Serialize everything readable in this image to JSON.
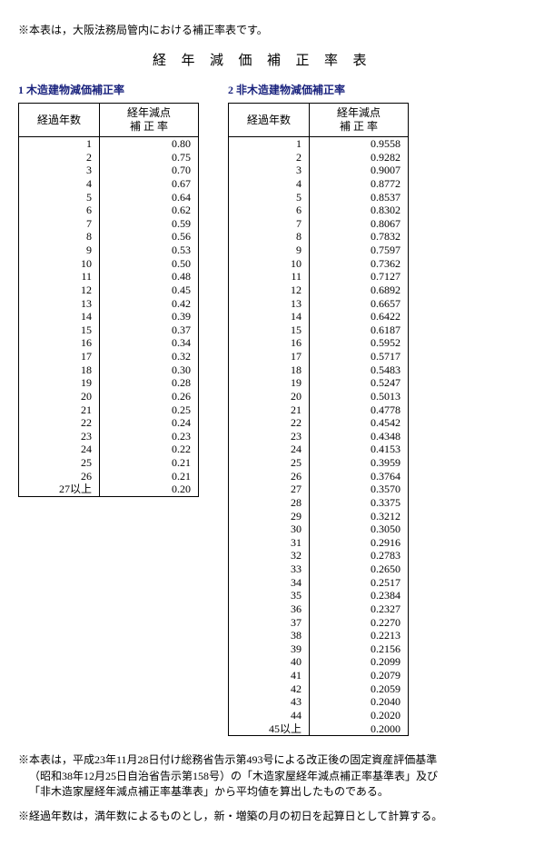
{
  "top_note": "※本表は，大阪法務局管内における補正率表です。",
  "main_title": "経年減価補正率表",
  "table1": {
    "caption": "1 木造建物減価補正率",
    "header_year": "経過年数",
    "header_rate_line1": "経年減点",
    "header_rate_line2": "補 正 率",
    "rows": [
      {
        "y": "1",
        "r": "0.80"
      },
      {
        "y": "2",
        "r": "0.75"
      },
      {
        "y": "3",
        "r": "0.70"
      },
      {
        "y": "4",
        "r": "0.67"
      },
      {
        "y": "5",
        "r": "0.64"
      },
      {
        "y": "6",
        "r": "0.62"
      },
      {
        "y": "7",
        "r": "0.59"
      },
      {
        "y": "8",
        "r": "0.56"
      },
      {
        "y": "9",
        "r": "0.53"
      },
      {
        "y": "10",
        "r": "0.50"
      },
      {
        "y": "11",
        "r": "0.48"
      },
      {
        "y": "12",
        "r": "0.45"
      },
      {
        "y": "13",
        "r": "0.42"
      },
      {
        "y": "14",
        "r": "0.39"
      },
      {
        "y": "15",
        "r": "0.37"
      },
      {
        "y": "16",
        "r": "0.34"
      },
      {
        "y": "17",
        "r": "0.32"
      },
      {
        "y": "18",
        "r": "0.30"
      },
      {
        "y": "19",
        "r": "0.28"
      },
      {
        "y": "20",
        "r": "0.26"
      },
      {
        "y": "21",
        "r": "0.25"
      },
      {
        "y": "22",
        "r": "0.24"
      },
      {
        "y": "23",
        "r": "0.23"
      },
      {
        "y": "24",
        "r": "0.22"
      },
      {
        "y": "25",
        "r": "0.21"
      },
      {
        "y": "26",
        "r": "0.21"
      },
      {
        "y": "27以上",
        "r": "0.20"
      }
    ]
  },
  "table2": {
    "caption": "2 非木造建物減価補正率",
    "header_year": "経過年数",
    "header_rate_line1": "経年減点",
    "header_rate_line2": "補 正 率",
    "rows": [
      {
        "y": "1",
        "r": "0.9558"
      },
      {
        "y": "2",
        "r": "0.9282"
      },
      {
        "y": "3",
        "r": "0.9007"
      },
      {
        "y": "4",
        "r": "0.8772"
      },
      {
        "y": "5",
        "r": "0.8537"
      },
      {
        "y": "6",
        "r": "0.8302"
      },
      {
        "y": "7",
        "r": "0.8067"
      },
      {
        "y": "8",
        "r": "0.7832"
      },
      {
        "y": "9",
        "r": "0.7597"
      },
      {
        "y": "10",
        "r": "0.7362"
      },
      {
        "y": "11",
        "r": "0.7127"
      },
      {
        "y": "12",
        "r": "0.6892"
      },
      {
        "y": "13",
        "r": "0.6657"
      },
      {
        "y": "14",
        "r": "0.6422"
      },
      {
        "y": "15",
        "r": "0.6187"
      },
      {
        "y": "16",
        "r": "0.5952"
      },
      {
        "y": "17",
        "r": "0.5717"
      },
      {
        "y": "18",
        "r": "0.5483"
      },
      {
        "y": "19",
        "r": "0.5247"
      },
      {
        "y": "20",
        "r": "0.5013"
      },
      {
        "y": "21",
        "r": "0.4778"
      },
      {
        "y": "22",
        "r": "0.4542"
      },
      {
        "y": "23",
        "r": "0.4348"
      },
      {
        "y": "24",
        "r": "0.4153"
      },
      {
        "y": "25",
        "r": "0.3959"
      },
      {
        "y": "26",
        "r": "0.3764"
      },
      {
        "y": "27",
        "r": "0.3570"
      },
      {
        "y": "28",
        "r": "0.3375"
      },
      {
        "y": "29",
        "r": "0.3212"
      },
      {
        "y": "30",
        "r": "0.3050"
      },
      {
        "y": "31",
        "r": "0.2916"
      },
      {
        "y": "32",
        "r": "0.2783"
      },
      {
        "y": "33",
        "r": "0.2650"
      },
      {
        "y": "34",
        "r": "0.2517"
      },
      {
        "y": "35",
        "r": "0.2384"
      },
      {
        "y": "36",
        "r": "0.2327"
      },
      {
        "y": "37",
        "r": "0.2270"
      },
      {
        "y": "38",
        "r": "0.2213"
      },
      {
        "y": "39",
        "r": "0.2156"
      },
      {
        "y": "40",
        "r": "0.2099"
      },
      {
        "y": "41",
        "r": "0.2079"
      },
      {
        "y": "42",
        "r": "0.2059"
      },
      {
        "y": "43",
        "r": "0.2040"
      },
      {
        "y": "44",
        "r": "0.2020"
      },
      {
        "y": "45以上",
        "r": "0.2000"
      }
    ]
  },
  "footnote1_line1": "※本表は，平成23年11月28日付け総務省告示第493号による改正後の固定資産評価基準",
  "footnote1_line2": "（昭和38年12月25日自治省告示第158号）の「木造家屋経年減点補正率基準表」及び",
  "footnote1_line3": "「非木造家屋経年減点補正率基準表」から平均値を算出したものである。",
  "footnote2": "※経過年数は，満年数によるものとし，新・増築の月の初日を起算日として計算する。"
}
